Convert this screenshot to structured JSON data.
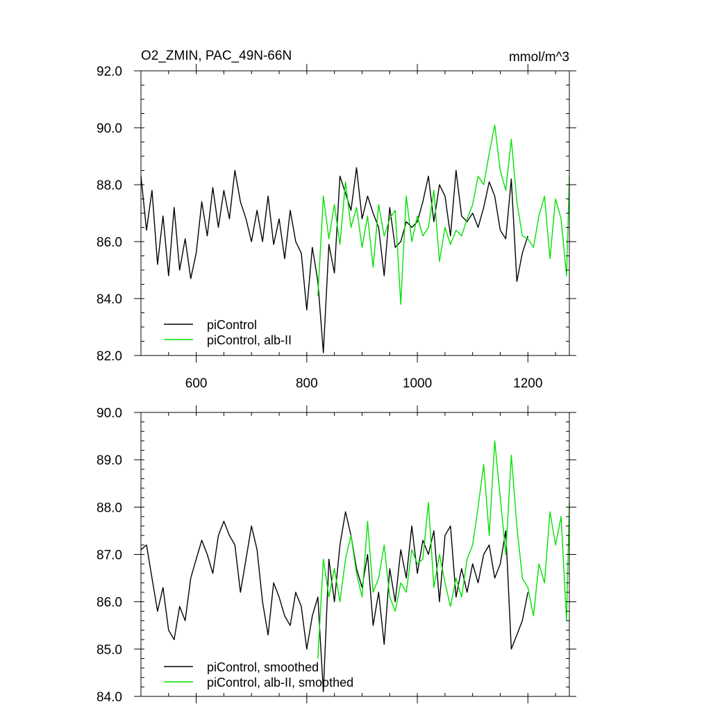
{
  "chart_data": [
    {
      "type": "line",
      "title": "O2_ZMIN, PAC_49N-66N",
      "units": "mmol/m^3",
      "xlim": [
        500,
        1275
      ],
      "ylim": [
        82.0,
        92.0
      ],
      "xticks": [
        600,
        800,
        1000,
        1200
      ],
      "xtick_labels": [
        "600",
        "800",
        "1000",
        "1200"
      ],
      "yticks": [
        82.0,
        84.0,
        86.0,
        88.0,
        90.0,
        92.0
      ],
      "ytick_labels": [
        "82.0",
        "84.0",
        "86.0",
        "88.0",
        "90.0",
        "92.0"
      ],
      "legend_position": "bottom-left",
      "series": [
        {
          "name": "piControl",
          "color": "#000000",
          "x": [
            500,
            510,
            520,
            530,
            540,
            550,
            560,
            570,
            580,
            590,
            600,
            610,
            620,
            630,
            640,
            650,
            660,
            670,
            680,
            690,
            700,
            710,
            720,
            730,
            740,
            750,
            760,
            770,
            780,
            790,
            800,
            810,
            820,
            830,
            840,
            850,
            860,
            870,
            880,
            890,
            900,
            910,
            920,
            930,
            940,
            950,
            960,
            970,
            980,
            990,
            1000,
            1010,
            1020,
            1030,
            1040,
            1050,
            1060,
            1070,
            1080,
            1090,
            1100,
            1110,
            1120,
            1130,
            1140,
            1150,
            1160,
            1170,
            1180,
            1190,
            1200
          ],
          "y": [
            88.3,
            86.4,
            87.8,
            85.2,
            86.9,
            84.8,
            87.2,
            85.0,
            86.1,
            84.7,
            85.6,
            87.4,
            86.2,
            87.9,
            86.5,
            87.8,
            86.8,
            88.5,
            87.4,
            86.8,
            86.0,
            87.1,
            86.0,
            87.6,
            85.9,
            86.8,
            85.4,
            87.1,
            86.0,
            85.6,
            83.6,
            85.8,
            84.6,
            82.1,
            85.9,
            84.9,
            88.3,
            87.7,
            87.1,
            88.6,
            86.8,
            87.6,
            87.0,
            86.5,
            84.8,
            87.2,
            85.8,
            86.0,
            86.7,
            86.5,
            86.7,
            87.4,
            88.3,
            86.7,
            88.0,
            87.6,
            86.2,
            88.5,
            86.9,
            86.7,
            87.0,
            86.5,
            87.2,
            88.1,
            87.6,
            86.4,
            86.1,
            88.2,
            84.6,
            85.6,
            86.2
          ]
        },
        {
          "name": "piControl, alb-II",
          "color": "#00e000",
          "x": [
            820,
            830,
            840,
            850,
            860,
            870,
            880,
            890,
            900,
            910,
            920,
            930,
            940,
            950,
            960,
            970,
            980,
            990,
            1000,
            1010,
            1020,
            1030,
            1040,
            1050,
            1060,
            1070,
            1080,
            1090,
            1100,
            1110,
            1120,
            1130,
            1140,
            1150,
            1160,
            1170,
            1180,
            1190,
            1200,
            1210,
            1220,
            1230,
            1240,
            1250,
            1260,
            1270,
            1275
          ],
          "y": [
            84.1,
            87.6,
            86.1,
            87.3,
            85.9,
            88.1,
            86.5,
            87.2,
            85.8,
            86.9,
            85.1,
            87.3,
            86.2,
            86.8,
            87.1,
            83.8,
            87.6,
            86.0,
            86.9,
            86.2,
            86.5,
            87.8,
            85.3,
            86.5,
            85.9,
            86.4,
            86.2,
            86.8,
            87.3,
            88.3,
            88.0,
            89.1,
            90.1,
            88.5,
            87.8,
            89.6,
            87.4,
            86.2,
            86.1,
            85.8,
            86.9,
            87.6,
            85.4,
            87.5,
            86.8,
            84.8,
            88.3
          ]
        }
      ]
    },
    {
      "type": "line",
      "xlim": [
        500,
        1275
      ],
      "ylim": [
        84.0,
        90.0
      ],
      "xticks": [
        600,
        800,
        1000,
        1200
      ],
      "yticks": [
        84.0,
        85.0,
        86.0,
        87.0,
        88.0,
        89.0,
        90.0
      ],
      "ytick_labels": [
        "84.0",
        "85.0",
        "86.0",
        "87.0",
        "88.0",
        "89.0",
        "90.0"
      ],
      "legend_position": "bottom-left",
      "series": [
        {
          "name": "piControl, smoothed",
          "color": "#000000",
          "x": [
            500,
            510,
            520,
            530,
            540,
            550,
            560,
            570,
            580,
            590,
            600,
            610,
            620,
            630,
            640,
            650,
            660,
            670,
            680,
            690,
            700,
            710,
            720,
            730,
            740,
            750,
            760,
            770,
            780,
            790,
            800,
            810,
            820,
            830,
            840,
            850,
            860,
            870,
            880,
            890,
            900,
            910,
            920,
            930,
            940,
            950,
            960,
            970,
            980,
            990,
            1000,
            1010,
            1020,
            1030,
            1040,
            1050,
            1060,
            1070,
            1080,
            1090,
            1100,
            1110,
            1120,
            1130,
            1140,
            1150,
            1160,
            1170,
            1180,
            1190,
            1200
          ],
          "y": [
            87.1,
            87.2,
            86.5,
            85.8,
            86.3,
            85.4,
            85.2,
            85.9,
            85.6,
            86.5,
            86.9,
            87.3,
            87.0,
            86.6,
            87.4,
            87.7,
            87.4,
            87.2,
            86.2,
            86.9,
            87.6,
            87.1,
            86.0,
            85.3,
            86.4,
            86.1,
            85.7,
            85.5,
            86.2,
            85.9,
            85.0,
            85.7,
            86.1,
            84.1,
            86.9,
            86.0,
            87.2,
            87.9,
            87.4,
            86.7,
            86.3,
            87.0,
            85.5,
            86.2,
            85.1,
            86.7,
            86.0,
            87.1,
            86.5,
            87.6,
            86.6,
            87.3,
            87.0,
            87.5,
            86.0,
            87.4,
            87.6,
            86.1,
            86.7,
            86.2,
            86.8,
            86.4,
            87.0,
            87.2,
            86.5,
            86.8,
            87.5,
            85.0,
            85.3,
            85.6,
            86.2
          ]
        },
        {
          "name": "piControl, alb-II, smoothed",
          "color": "#00e000",
          "x": [
            820,
            830,
            840,
            850,
            860,
            870,
            880,
            890,
            900,
            910,
            920,
            930,
            940,
            950,
            960,
            970,
            980,
            990,
            1000,
            1010,
            1020,
            1030,
            1040,
            1050,
            1060,
            1070,
            1080,
            1090,
            1100,
            1110,
            1120,
            1130,
            1140,
            1150,
            1160,
            1170,
            1180,
            1190,
            1200,
            1210,
            1220,
            1230,
            1240,
            1250,
            1260,
            1270,
            1275
          ],
          "y": [
            84.8,
            86.9,
            86.1,
            86.7,
            86.0,
            86.9,
            87.4,
            86.6,
            86.1,
            87.7,
            86.2,
            86.5,
            87.2,
            86.1,
            85.8,
            86.4,
            86.2,
            87.1,
            86.8,
            86.9,
            88.1,
            86.3,
            87.0,
            86.4,
            85.9,
            86.5,
            86.1,
            86.9,
            87.2,
            88.0,
            88.9,
            87.4,
            89.4,
            88.2,
            87.0,
            89.1,
            87.6,
            86.5,
            86.3,
            85.7,
            86.8,
            86.4,
            87.9,
            87.2,
            87.8,
            85.6,
            88.1
          ]
        }
      ]
    }
  ]
}
